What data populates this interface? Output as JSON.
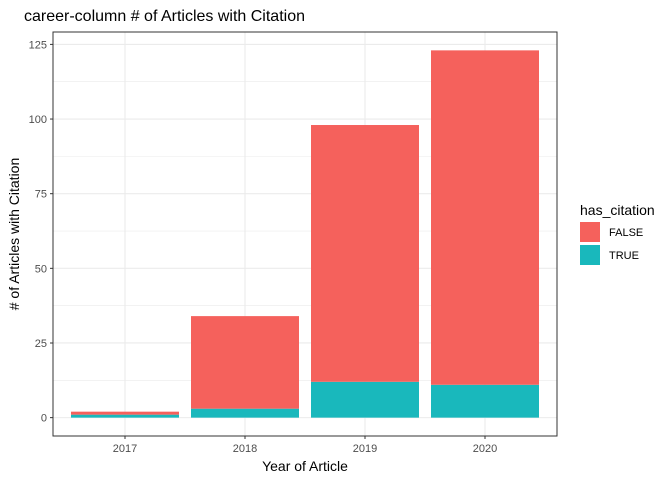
{
  "chart_data": {
    "type": "bar",
    "stacked": true,
    "title": "career-column # of Articles with Citation",
    "xlabel": "Year of Article",
    "ylabel": "# of Articles with Citation",
    "categories": [
      "2017",
      "2018",
      "2019",
      "2020"
    ],
    "series": [
      {
        "name": "TRUE",
        "color": "#19B8BC",
        "values": [
          1,
          3,
          12,
          11
        ]
      },
      {
        "name": "FALSE",
        "color": "#F5615C",
        "values": [
          1,
          31,
          86,
          112
        ]
      }
    ],
    "ylim": [
      -6.15,
      129.15
    ],
    "yticks": [
      0,
      25,
      50,
      75,
      100,
      125
    ],
    "grid": true,
    "legend": {
      "title": "has_citation",
      "placement": "right",
      "entries": [
        {
          "label": "FALSE",
          "color": "#F5615C"
        },
        {
          "label": "TRUE",
          "color": "#19B8BC"
        }
      ]
    }
  }
}
